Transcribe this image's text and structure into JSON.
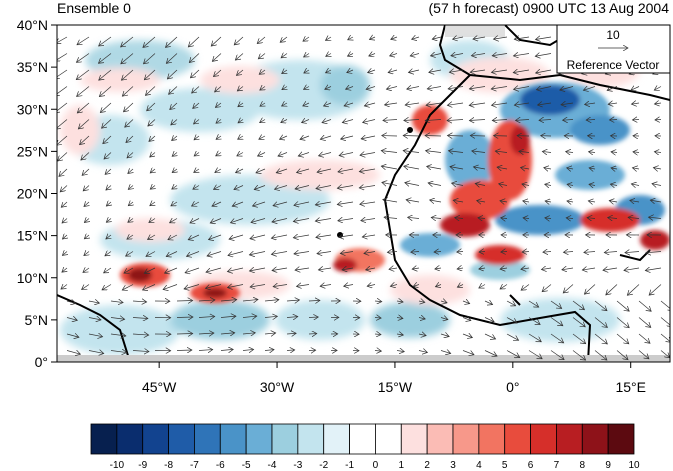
{
  "title_left": "Ensemble 0",
  "title_right": "(57 h forecast) 0900 UTC 13 Aug 2004",
  "reference_vector": {
    "magnitude": "10",
    "label": "Reference Vector"
  },
  "map": {
    "lon_range": [
      -58,
      20
    ],
    "lat_range": [
      0,
      40
    ],
    "lat_ticks": [
      {
        "value": 40,
        "label": "40°N"
      },
      {
        "value": 35,
        "label": "35°N"
      },
      {
        "value": 30,
        "label": "30°N"
      },
      {
        "value": 25,
        "label": "25°N"
      },
      {
        "value": 20,
        "label": "20°N"
      },
      {
        "value": 15,
        "label": "15°N"
      },
      {
        "value": 10,
        "label": "10°N"
      },
      {
        "value": 5,
        "label": "5°N"
      },
      {
        "value": 0,
        "label": "0°"
      }
    ],
    "lon_ticks": [
      {
        "value": -45,
        "label": "45°W"
      },
      {
        "value": -30,
        "label": "30°W"
      },
      {
        "value": -15,
        "label": "15°W"
      },
      {
        "value": 0,
        "label": "0°"
      },
      {
        "value": 15,
        "label": "15°E"
      }
    ]
  },
  "colorbar": {
    "labels": [
      "-10",
      "-9",
      "-8",
      "-7",
      "-6",
      "-5",
      "-4",
      "-3",
      "-2",
      "-1",
      "0",
      "1",
      "2",
      "3",
      "4",
      "5",
      "6",
      "7",
      "8",
      "9",
      "10"
    ],
    "colors": [
      "#07204f",
      "#0a2d6e",
      "#12438f",
      "#1f5ca8",
      "#2f74b8",
      "#4a93c8",
      "#6aaed6",
      "#9ccfdf",
      "#c3e4ee",
      "#e2f2f8",
      "#ffffff",
      "#ffffff",
      "#fde0df",
      "#fbbcb5",
      "#f7988a",
      "#f27461",
      "#e84c3d",
      "#d62f2a",
      "#b81e22",
      "#8e1219",
      "#5c0a10"
    ]
  }
}
